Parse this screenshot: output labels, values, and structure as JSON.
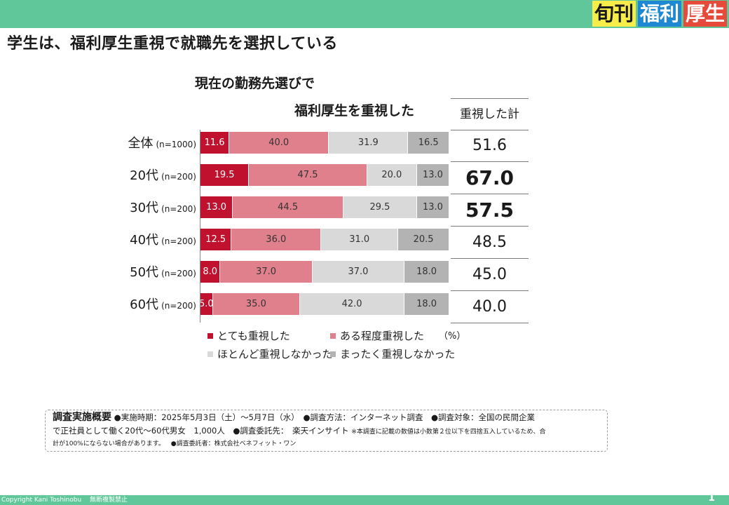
{
  "header": {
    "logo": [
      "旬刊",
      "福利",
      "厚生"
    ],
    "title": "学生は、福利厚生重視で就職先を選択している"
  },
  "chart_data": {
    "type": "bar",
    "stacked": true,
    "orientation": "horizontal",
    "title_lines": [
      "現在の勤務先選びで",
      "福利厚生を重視した"
    ],
    "unit": "（%）",
    "categories": [
      {
        "label": "全体",
        "n": "(n=1000)"
      },
      {
        "label": "20代",
        "n": "(n=200)"
      },
      {
        "label": "30代",
        "n": "(n=200)"
      },
      {
        "label": "40代",
        "n": "(n=200)"
      },
      {
        "label": "50代",
        "n": "(n=200)"
      },
      {
        "label": "60代",
        "n": "(n=200)"
      }
    ],
    "series": [
      {
        "name": "とても重視した",
        "color": "#c0122f",
        "values": [
          11.6,
          19.5,
          13.0,
          12.5,
          8.0,
          5.0
        ],
        "labels": [
          "11.6",
          "19.5",
          "13.0",
          "12.5",
          "8.0",
          "5.0"
        ]
      },
      {
        "name": "ある程度重視した",
        "color": "#e0808c",
        "values": [
          40.0,
          47.5,
          44.5,
          36.0,
          37.0,
          35.0
        ],
        "labels": [
          "40.0",
          "47.5",
          "44.5",
          "36.0",
          "37.0",
          "35.0"
        ]
      },
      {
        "name": "ほとんど重視しなかった",
        "color": "#d9d9d9",
        "values": [
          31.9,
          20.0,
          29.5,
          31.0,
          37.0,
          42.0
        ],
        "labels": [
          "31.9",
          "20.0",
          "29.5",
          "31.0",
          "37.0",
          "42.0"
        ]
      },
      {
        "name": "まったく重視しなかった",
        "color": "#b3b3b3",
        "values": [
          16.5,
          13.0,
          13.0,
          20.5,
          18.0,
          18.0
        ],
        "labels": [
          "16.5",
          "13.0",
          "13.0",
          "20.5",
          "18.0",
          "18.0"
        ]
      }
    ],
    "summary": {
      "header": "重視した計",
      "values": [
        "51.6",
        "67.0",
        "57.5",
        "48.5",
        "45.0",
        "40.0"
      ],
      "bold": [
        false,
        true,
        true,
        false,
        false,
        false
      ]
    },
    "xlim": [
      0,
      100
    ]
  },
  "note": {
    "title": "調査実施概要",
    "line1": "●実施時期：2025年5月3日（土）～5月7日（水）　●調査方法：インターネット調査　●調査対象：全国の民間企業",
    "line2a": "で正社員として働く20代～60代男女　1,000人　●調査委託先：　楽天インサイト",
    "line2b": "※本調査に記載の数値は小数第２位以下を四捨五入しているため、合",
    "line3a": "計が100%にならない場合があります。",
    "line3b": "●調査委託者：株式会社ベネフィット・ワン"
  },
  "footer": {
    "copyright": "Copyright  Kani Toshinobu　 無断複製禁止",
    "page_number": "1"
  }
}
